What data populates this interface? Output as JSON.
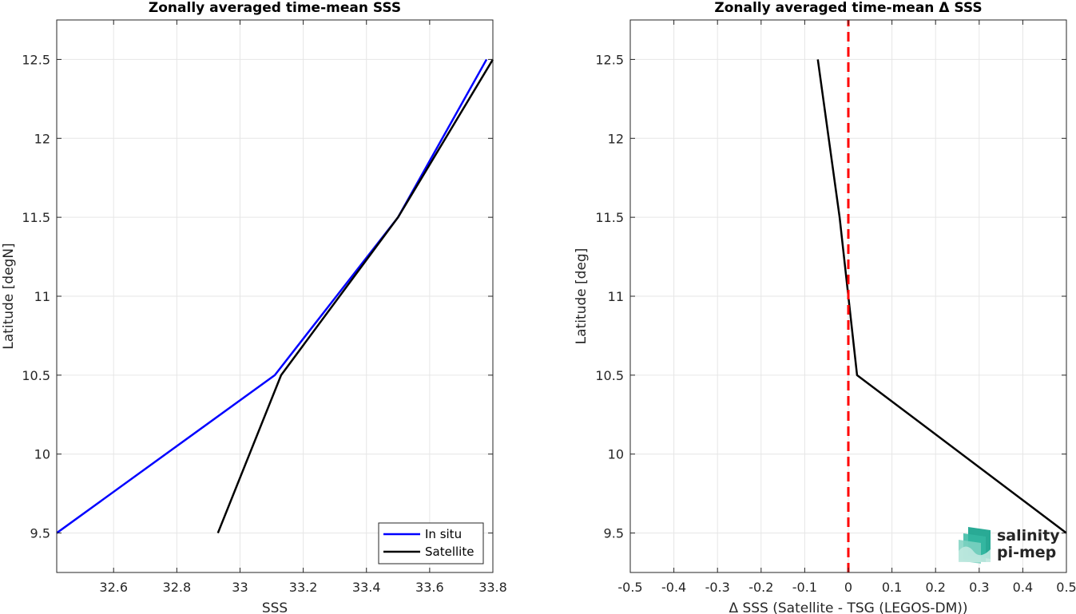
{
  "chart_data": [
    {
      "type": "line",
      "title": "Zonally averaged time-mean SSS",
      "xlabel": "SSS",
      "ylabel": "Latitude [degN]",
      "xlim": [
        32.42,
        33.8
      ],
      "ylim": [
        9.25,
        12.75
      ],
      "xticks": [
        32.6,
        32.8,
        33,
        33.2,
        33.4,
        33.6,
        33.8
      ],
      "xtick_labels": [
        "32.6",
        "32.8",
        "33",
        "33.2",
        "33.4",
        "33.6",
        "33.8"
      ],
      "yticks": [
        9.5,
        10,
        10.5,
        11,
        11.5,
        12,
        12.5
      ],
      "ytick_labels": [
        "9.5",
        "10",
        "10.5",
        "11",
        "11.5",
        "12",
        "12.5"
      ],
      "grid": true,
      "legend_position": "bottom-right",
      "series": [
        {
          "name": "In situ",
          "color": "#0000ff",
          "dash": false,
          "x": [
            32.42,
            33.11,
            33.5,
            33.78
          ],
          "y": [
            9.5,
            10.5,
            11.5,
            12.5
          ]
        },
        {
          "name": "Satellite",
          "color": "#000000",
          "dash": false,
          "x": [
            32.93,
            33.13,
            33.5,
            33.8
          ],
          "y": [
            9.5,
            10.5,
            11.5,
            12.5
          ]
        }
      ]
    },
    {
      "type": "line",
      "title": "Zonally averaged time-mean Δ SSS",
      "xlabel": "Δ SSS (Satellite - TSG (LEGOS-DM))",
      "ylabel": "Latitude [deg]",
      "xlim": [
        -0.5,
        0.5
      ],
      "ylim": [
        9.25,
        12.75
      ],
      "xticks": [
        -0.5,
        -0.4,
        -0.3,
        -0.2,
        -0.1,
        0,
        0.1,
        0.2,
        0.3,
        0.4,
        0.5
      ],
      "xtick_labels": [
        "-0.5",
        "-0.4",
        "-0.3",
        "-0.2",
        "-0.1",
        "0",
        "0.1",
        "0.2",
        "0.3",
        "0.4",
        "0.5"
      ],
      "yticks": [
        9.5,
        10,
        10.5,
        11,
        11.5,
        12,
        12.5
      ],
      "ytick_labels": [
        "9.5",
        "10",
        "10.5",
        "11",
        "11.5",
        "12",
        "12.5"
      ],
      "grid": true,
      "series": [
        {
          "color": "#000000",
          "dash": false,
          "x": [
            0.5,
            0.02,
            -0.02,
            -0.07
          ],
          "y": [
            9.5,
            10.5,
            11.5,
            12.5
          ]
        },
        {
          "color": "#ff0000",
          "dash": true,
          "x": [
            0,
            0
          ],
          "y": [
            9.25,
            12.75
          ]
        }
      ]
    }
  ],
  "logo": {
    "line1": "salinity",
    "line2": "pi-mep",
    "color": "#1ea58f"
  }
}
